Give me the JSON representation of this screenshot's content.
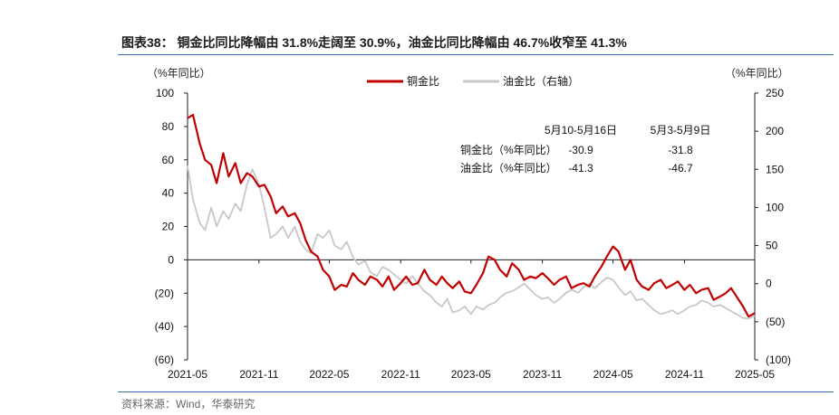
{
  "title": "图表38： 铜金比同比降幅由 31.8%走阔至 30.9%，油金比同比降幅由 46.7%收窄至 41.3%",
  "source": "资料来源：Wind，华泰研究",
  "chart_data": {
    "type": "line",
    "left_unit": "（%年同比）",
    "right_unit": "（%年同比）",
    "x_ticks": [
      "2021-05",
      "2021-11",
      "2022-05",
      "2022-11",
      "2023-05",
      "2023-11",
      "2024-05",
      "2024-11",
      "2025-05"
    ],
    "y_left": {
      "min": -60,
      "max": 100,
      "ticks": [
        100,
        80,
        60,
        40,
        20,
        0,
        -20,
        -40,
        -60
      ],
      "tick_labels": [
        "100",
        "80",
        "60",
        "40",
        "20",
        "0",
        "(20)",
        "(40)",
        "(60)"
      ]
    },
    "y_right": {
      "min": -100,
      "max": 250,
      "ticks": [
        250,
        200,
        150,
        100,
        50,
        0,
        -50,
        -100
      ],
      "tick_labels": [
        "250",
        "200",
        "150",
        "100",
        "50",
        "0",
        "(50)",
        "(100)"
      ]
    },
    "series": [
      {
        "name": "铜金比",
        "axis": "left",
        "color": "#c00000",
        "points": [
          [
            "2021-05",
            85
          ],
          [
            "2021-05-15",
            87
          ],
          [
            "2021-06",
            70
          ],
          [
            "2021-06-15",
            60
          ],
          [
            "2021-07",
            57
          ],
          [
            "2021-07-15",
            46
          ],
          [
            "2021-08",
            64
          ],
          [
            "2021-08-15",
            50
          ],
          [
            "2021-09",
            58
          ],
          [
            "2021-09-15",
            46
          ],
          [
            "2021-10",
            52
          ],
          [
            "2021-10-15",
            50
          ],
          [
            "2021-11",
            44
          ],
          [
            "2021-11-15",
            45
          ],
          [
            "2021-12",
            38
          ],
          [
            "2021-12-15",
            28
          ],
          [
            "2022-01",
            32
          ],
          [
            "2022-01-15",
            26
          ],
          [
            "2022-02",
            28
          ],
          [
            "2022-02-15",
            22
          ],
          [
            "2022-03",
            12
          ],
          [
            "2022-03-15",
            5
          ],
          [
            "2022-04",
            2
          ],
          [
            "2022-04-15",
            -6
          ],
          [
            "2022-05",
            -10
          ],
          [
            "2022-05-15",
            -18
          ],
          [
            "2022-06",
            -15
          ],
          [
            "2022-06-15",
            -16
          ],
          [
            "2022-07",
            -8
          ],
          [
            "2022-07-15",
            -12
          ],
          [
            "2022-08",
            -15
          ],
          [
            "2022-08-15",
            -10
          ],
          [
            "2022-09",
            -12
          ],
          [
            "2022-09-15",
            -16
          ],
          [
            "2022-10",
            -10
          ],
          [
            "2022-10-15",
            -18
          ],
          [
            "2022-11",
            -14
          ],
          [
            "2022-11-15",
            -10
          ],
          [
            "2022-12",
            -15
          ],
          [
            "2022-12-15",
            -14
          ],
          [
            "2023-01",
            -6
          ],
          [
            "2023-01-15",
            -12
          ],
          [
            "2023-02",
            -15
          ],
          [
            "2023-02-15",
            -10
          ],
          [
            "2023-03",
            -14
          ],
          [
            "2023-03-15",
            -17
          ],
          [
            "2023-04",
            -13
          ],
          [
            "2023-04-15",
            -19
          ],
          [
            "2023-05",
            -20
          ],
          [
            "2023-05-15",
            -15
          ],
          [
            "2023-06",
            -8
          ],
          [
            "2023-06-15",
            2
          ],
          [
            "2023-07",
            0
          ],
          [
            "2023-07-15",
            -6
          ],
          [
            "2023-08",
            -10
          ],
          [
            "2023-08-15",
            -2
          ],
          [
            "2023-09",
            -6
          ],
          [
            "2023-09-15",
            -12
          ],
          [
            "2023-10",
            -10
          ],
          [
            "2023-10-15",
            -11
          ],
          [
            "2023-11",
            -8
          ],
          [
            "2023-11-15",
            -11
          ],
          [
            "2023-12",
            -15
          ],
          [
            "2023-12-15",
            -12
          ],
          [
            "2024-01",
            -10
          ],
          [
            "2024-01-15",
            -17
          ],
          [
            "2024-02",
            -15
          ],
          [
            "2024-02-15",
            -14
          ],
          [
            "2024-03",
            -16
          ],
          [
            "2024-03-15",
            -10
          ],
          [
            "2024-04",
            -4
          ],
          [
            "2024-04-15",
            2
          ],
          [
            "2024-05",
            8
          ],
          [
            "2024-05-15",
            5
          ],
          [
            "2024-06",
            -6
          ],
          [
            "2024-06-15",
            0
          ],
          [
            "2024-07",
            -12
          ],
          [
            "2024-07-15",
            -16
          ],
          [
            "2024-08",
            -18
          ],
          [
            "2024-08-15",
            -14
          ],
          [
            "2024-09",
            -12
          ],
          [
            "2024-09-15",
            -17
          ],
          [
            "2024-10",
            -15
          ],
          [
            "2024-10-15",
            -13
          ],
          [
            "2024-11",
            -18
          ],
          [
            "2024-11-15",
            -15
          ],
          [
            "2024-12",
            -20
          ],
          [
            "2024-12-15",
            -18
          ],
          [
            "2025-01",
            -17
          ],
          [
            "2025-01-15",
            -24
          ],
          [
            "2025-02",
            -22
          ],
          [
            "2025-02-15",
            -20
          ],
          [
            "2025-03",
            -17
          ],
          [
            "2025-03-15",
            -22
          ],
          [
            "2025-04",
            -28
          ],
          [
            "2025-04-15",
            -34
          ],
          [
            "2025-05",
            -32
          ]
        ]
      },
      {
        "name": "油金比（右轴）",
        "axis": "right",
        "color": "#c8c8c8",
        "points": [
          [
            "2021-05",
            155
          ],
          [
            "2021-05-15",
            110
          ],
          [
            "2021-06",
            80
          ],
          [
            "2021-06-15",
            70
          ],
          [
            "2021-07",
            100
          ],
          [
            "2021-07-15",
            75
          ],
          [
            "2021-08",
            95
          ],
          [
            "2021-08-15",
            85
          ],
          [
            "2021-09",
            105
          ],
          [
            "2021-09-15",
            95
          ],
          [
            "2021-10",
            130
          ],
          [
            "2021-10-15",
            150
          ],
          [
            "2021-11",
            130
          ],
          [
            "2021-11-15",
            100
          ],
          [
            "2021-12",
            60
          ],
          [
            "2021-12-15",
            65
          ],
          [
            "2022-01",
            75
          ],
          [
            "2022-01-15",
            60
          ],
          [
            "2022-02",
            75
          ],
          [
            "2022-02-15",
            55
          ],
          [
            "2022-03",
            45
          ],
          [
            "2022-03-15",
            40
          ],
          [
            "2022-04",
            65
          ],
          [
            "2022-04-15",
            60
          ],
          [
            "2022-05",
            70
          ],
          [
            "2022-05-15",
            50
          ],
          [
            "2022-06",
            45
          ],
          [
            "2022-06-15",
            55
          ],
          [
            "2022-07",
            35
          ],
          [
            "2022-07-15",
            25
          ],
          [
            "2022-08",
            30
          ],
          [
            "2022-08-15",
            15
          ],
          [
            "2022-09",
            10
          ],
          [
            "2022-09-15",
            22
          ],
          [
            "2022-10",
            18
          ],
          [
            "2022-10-15",
            12
          ],
          [
            "2022-11",
            5
          ],
          [
            "2022-11-15",
            0
          ],
          [
            "2022-12",
            10
          ],
          [
            "2022-12-15",
            0
          ],
          [
            "2023-01",
            -10
          ],
          [
            "2023-01-15",
            -15
          ],
          [
            "2023-02",
            -25
          ],
          [
            "2023-02-15",
            -30
          ],
          [
            "2023-03",
            -20
          ],
          [
            "2023-03-15",
            -38
          ],
          [
            "2023-04",
            -35
          ],
          [
            "2023-04-15",
            -30
          ],
          [
            "2023-05",
            -40
          ],
          [
            "2023-05-15",
            -30
          ],
          [
            "2023-06",
            -34
          ],
          [
            "2023-06-15",
            -28
          ],
          [
            "2023-07",
            -25
          ],
          [
            "2023-07-15",
            -18
          ],
          [
            "2023-08",
            -12
          ],
          [
            "2023-08-15",
            -10
          ],
          [
            "2023-09",
            -5
          ],
          [
            "2023-09-15",
            0
          ],
          [
            "2023-10",
            -8
          ],
          [
            "2023-10-15",
            -15
          ],
          [
            "2023-11",
            -20
          ],
          [
            "2023-11-15",
            -18
          ],
          [
            "2023-12",
            -25
          ],
          [
            "2023-12-15",
            -20
          ],
          [
            "2024-01",
            -12
          ],
          [
            "2024-01-15",
            -8
          ],
          [
            "2024-02",
            -12
          ],
          [
            "2024-02-15",
            -5
          ],
          [
            "2024-03",
            0
          ],
          [
            "2024-03-15",
            -6
          ],
          [
            "2024-04",
            2
          ],
          [
            "2024-04-15",
            8
          ],
          [
            "2024-05",
            5
          ],
          [
            "2024-05-15",
            -5
          ],
          [
            "2024-06",
            -15
          ],
          [
            "2024-06-15",
            -10
          ],
          [
            "2024-07",
            -22
          ],
          [
            "2024-07-15",
            -20
          ],
          [
            "2024-08",
            -28
          ],
          [
            "2024-08-15",
            -35
          ],
          [
            "2024-09",
            -40
          ],
          [
            "2024-09-15",
            -38
          ],
          [
            "2024-10",
            -35
          ],
          [
            "2024-10-15",
            -40
          ],
          [
            "2024-11",
            -35
          ],
          [
            "2024-11-15",
            -30
          ],
          [
            "2024-12",
            -28
          ],
          [
            "2024-12-15",
            -22
          ],
          [
            "2025-01",
            -25
          ],
          [
            "2025-01-15",
            -30
          ],
          [
            "2025-02",
            -28
          ],
          [
            "2025-02-15",
            -32
          ],
          [
            "2025-03",
            -36
          ],
          [
            "2025-03-15",
            -40
          ],
          [
            "2025-04",
            -45
          ],
          [
            "2025-04-15",
            -46
          ],
          [
            "2025-05",
            -42
          ]
        ]
      }
    ],
    "table": {
      "headers": [
        "",
        "5月10-5月16日",
        "5月3-5月9日"
      ],
      "rows": [
        [
          "铜金比（%年同比）",
          "-30.9",
          "-31.8"
        ],
        [
          "油金比（%年同比）",
          "-41.3",
          "-46.7"
        ]
      ]
    }
  }
}
